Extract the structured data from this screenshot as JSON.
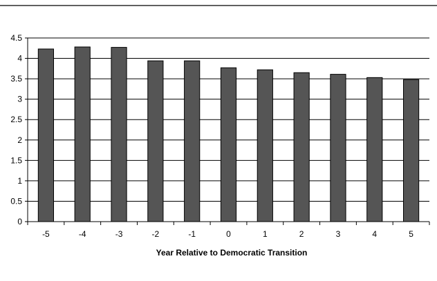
{
  "chart_data": {
    "type": "bar",
    "title": "",
    "xlabel": "Year Relative to Democratic Transition",
    "ylabel": "",
    "categories": [
      "-5",
      "-4",
      "-3",
      "-2",
      "-1",
      "0",
      "1",
      "2",
      "3",
      "4",
      "5"
    ],
    "values": [
      4.23,
      4.28,
      4.27,
      3.94,
      3.94,
      3.77,
      3.72,
      3.65,
      3.61,
      3.53,
      3.48
    ],
    "ylim": [
      0,
      4.5
    ],
    "yticks": [
      "0",
      "0.5",
      "1",
      "1.5",
      "2",
      "2.5",
      "3",
      "3.5",
      "4",
      "4.5"
    ],
    "grid": true,
    "legend": "none",
    "bar_color": "#555555",
    "bar_stroke": "#000000",
    "grid_color": "#000000",
    "background": "#ffffff"
  }
}
